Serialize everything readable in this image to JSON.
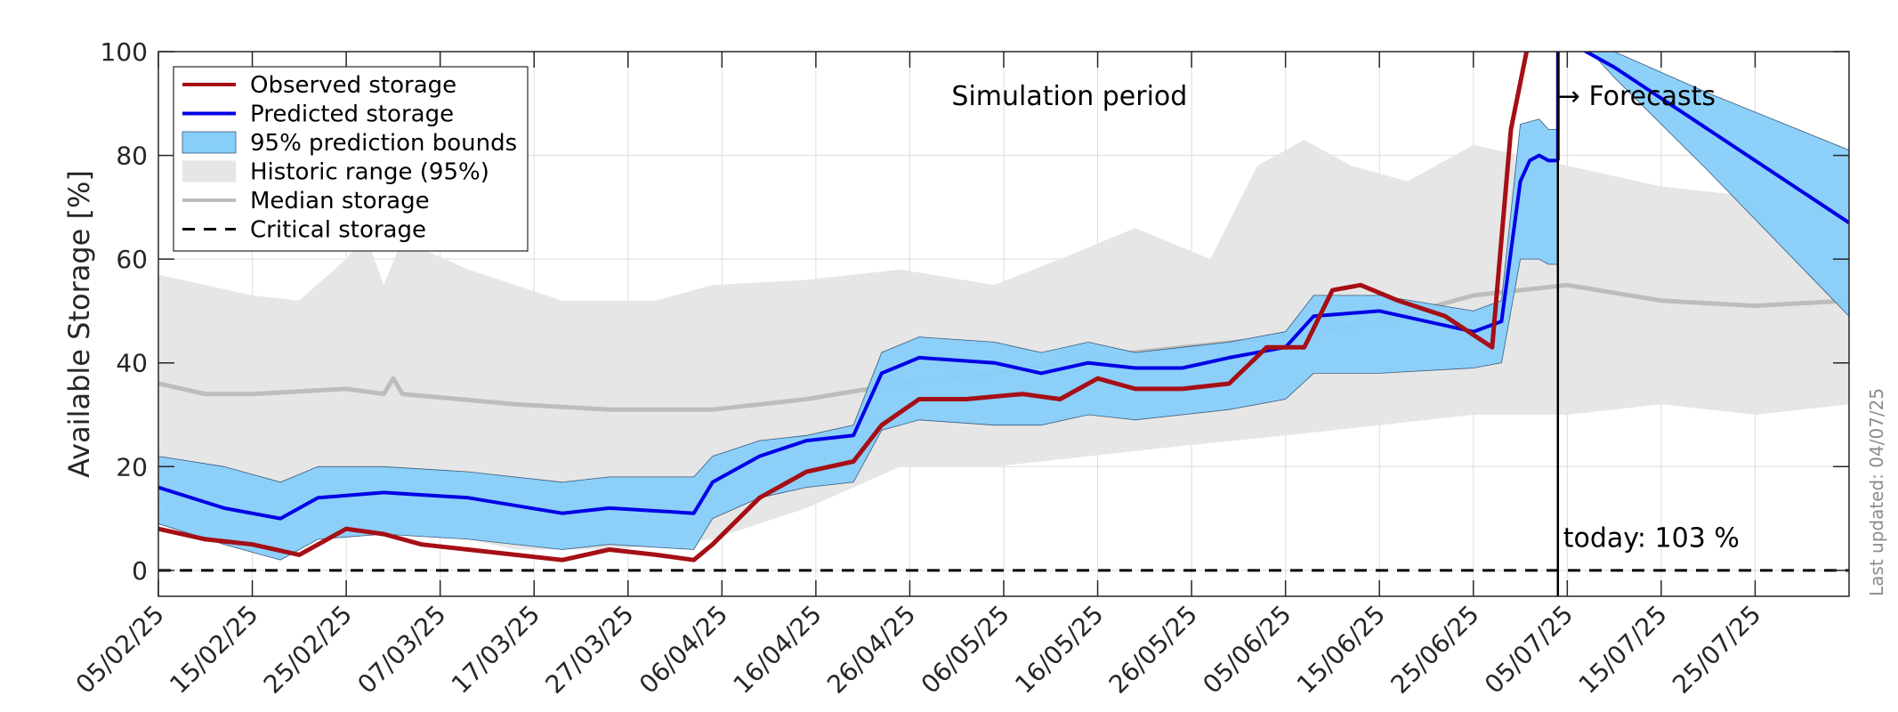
{
  "chart_data": {
    "type": "area",
    "ylabel": "Available Storage [%]",
    "ylim": [
      0,
      100
    ],
    "ylim_display": [
      -5,
      100
    ],
    "yticks": [
      0,
      20,
      40,
      60,
      80,
      100
    ],
    "x_start": "2025-02-05",
    "x_end": "2025-08-04",
    "xtick_labels": [
      "05/02/25",
      "15/02/25",
      "25/02/25",
      "07/03/25",
      "17/03/25",
      "27/03/25",
      "06/04/25",
      "16/04/25",
      "26/04/25",
      "06/05/25",
      "16/05/25",
      "26/05/25",
      "05/06/25",
      "15/06/25",
      "25/06/25",
      "05/07/25",
      "15/07/25",
      "25/07/25"
    ],
    "grid": true,
    "legend_position": "top-left",
    "legend": [
      {
        "label": "Observed storage",
        "style": "line",
        "color": "#a50f15"
      },
      {
        "label": "Predicted storage",
        "style": "line",
        "color": "#0000e6"
      },
      {
        "label": "95% prediction bounds",
        "style": "patch",
        "color": "#87cefa"
      },
      {
        "label": "Historic range (95%)",
        "style": "patch",
        "color": "#e6e6e6"
      },
      {
        "label": "Median storage",
        "style": "line",
        "color": "#bdbdbd"
      },
      {
        "label": "Critical storage",
        "style": "dashed",
        "color": "#000000"
      }
    ],
    "annotations": {
      "simulation_period": "Simulation period",
      "forecasts": "→ Forecasts",
      "today": "today: 103 %",
      "last_updated": "Last updated: 04/07/25"
    },
    "today_date": "2025-07-04",
    "critical_storage": 0,
    "colors": {
      "observed": "#a50f15",
      "predicted": "#0000e6",
      "bounds": "#87cefa",
      "historic": "#e6e6e6",
      "median": "#bdbdbd"
    },
    "series": {
      "historic_range": {
        "upper": [
          [
            "2025-02-05",
            57
          ],
          [
            "2025-02-10",
            55
          ],
          [
            "2025-02-15",
            53
          ],
          [
            "2025-02-20",
            52
          ],
          [
            "2025-02-25",
            60
          ],
          [
            "2025-02-27",
            65
          ],
          [
            "2025-03-01",
            55
          ],
          [
            "2025-03-03",
            64
          ],
          [
            "2025-03-05",
            62
          ],
          [
            "2025-03-10",
            58
          ],
          [
            "2025-03-20",
            52
          ],
          [
            "2025-03-30",
            52
          ],
          [
            "2025-04-05",
            55
          ],
          [
            "2025-04-15",
            56
          ],
          [
            "2025-04-25",
            58
          ],
          [
            "2025-05-05",
            55
          ],
          [
            "2025-05-12",
            60
          ],
          [
            "2025-05-20",
            66
          ],
          [
            "2025-05-28",
            60
          ],
          [
            "2025-06-02",
            78
          ],
          [
            "2025-06-07",
            83
          ],
          [
            "2025-06-12",
            78
          ],
          [
            "2025-06-18",
            75
          ],
          [
            "2025-06-25",
            82
          ],
          [
            "2025-07-05",
            78
          ],
          [
            "2025-07-15",
            74
          ],
          [
            "2025-07-25",
            72
          ],
          [
            "2025-08-04",
            72
          ]
        ],
        "lower": [
          [
            "2025-02-05",
            13
          ],
          [
            "2025-02-15",
            9
          ],
          [
            "2025-02-25",
            8
          ],
          [
            "2025-03-05",
            8
          ],
          [
            "2025-03-15",
            4
          ],
          [
            "2025-03-25",
            4
          ],
          [
            "2025-04-05",
            6
          ],
          [
            "2025-04-15",
            12
          ],
          [
            "2025-04-25",
            20
          ],
          [
            "2025-05-05",
            20
          ],
          [
            "2025-05-15",
            22
          ],
          [
            "2025-05-25",
            24
          ],
          [
            "2025-06-05",
            26
          ],
          [
            "2025-06-15",
            28
          ],
          [
            "2025-06-25",
            30
          ],
          [
            "2025-07-05",
            30
          ],
          [
            "2025-07-15",
            32
          ],
          [
            "2025-07-25",
            30
          ],
          [
            "2025-08-04",
            32
          ]
        ]
      },
      "median_storage": [
        [
          "2025-02-05",
          36
        ],
        [
          "2025-02-10",
          34
        ],
        [
          "2025-02-15",
          34
        ],
        [
          "2025-02-25",
          35
        ],
        [
          "2025-03-01",
          34
        ],
        [
          "2025-03-02",
          37
        ],
        [
          "2025-03-03",
          34
        ],
        [
          "2025-03-15",
          32
        ],
        [
          "2025-03-25",
          31
        ],
        [
          "2025-04-05",
          31
        ],
        [
          "2025-04-15",
          33
        ],
        [
          "2025-04-25",
          36
        ],
        [
          "2025-05-05",
          38
        ],
        [
          "2025-05-15",
          41
        ],
        [
          "2025-05-25",
          43
        ],
        [
          "2025-06-05",
          45
        ],
        [
          "2025-06-15",
          48
        ],
        [
          "2025-06-25",
          53
        ],
        [
          "2025-07-05",
          55
        ],
        [
          "2025-07-15",
          52
        ],
        [
          "2025-07-25",
          51
        ],
        [
          "2025-08-04",
          52
        ]
      ],
      "prediction_bounds_upper": [
        [
          "2025-02-05",
          22
        ],
        [
          "2025-02-12",
          20
        ],
        [
          "2025-02-18",
          17
        ],
        [
          "2025-02-22",
          20
        ],
        [
          "2025-03-01",
          20
        ],
        [
          "2025-03-10",
          19
        ],
        [
          "2025-03-20",
          17
        ],
        [
          "2025-03-25",
          18
        ],
        [
          "2025-04-03",
          18
        ],
        [
          "2025-04-05",
          22
        ],
        [
          "2025-04-10",
          25
        ],
        [
          "2025-04-15",
          26
        ],
        [
          "2025-04-20",
          28
        ],
        [
          "2025-04-23",
          42
        ],
        [
          "2025-04-27",
          45
        ],
        [
          "2025-05-05",
          44
        ],
        [
          "2025-05-10",
          42
        ],
        [
          "2025-05-15",
          44
        ],
        [
          "2025-05-20",
          42
        ],
        [
          "2025-05-25",
          43
        ],
        [
          "2025-05-30",
          44
        ],
        [
          "2025-06-05",
          46
        ],
        [
          "2025-06-08",
          53
        ],
        [
          "2025-06-15",
          53
        ],
        [
          "2025-06-25",
          50
        ],
        [
          "2025-06-28",
          52
        ],
        [
          "2025-06-30",
          86
        ],
        [
          "2025-07-02",
          87
        ],
        [
          "2025-07-03",
          85
        ],
        [
          "2025-07-04",
          85
        ]
      ],
      "prediction_bounds_lower": [
        [
          "2025-02-05",
          9
        ],
        [
          "2025-02-12",
          5
        ],
        [
          "2025-02-18",
          2
        ],
        [
          "2025-02-22",
          6
        ],
        [
          "2025-03-01",
          7
        ],
        [
          "2025-03-10",
          6
        ],
        [
          "2025-03-20",
          4
        ],
        [
          "2025-03-25",
          5
        ],
        [
          "2025-04-03",
          4
        ],
        [
          "2025-04-05",
          10
        ],
        [
          "2025-04-10",
          14
        ],
        [
          "2025-04-15",
          16
        ],
        [
          "2025-04-20",
          17
        ],
        [
          "2025-04-23",
          27
        ],
        [
          "2025-04-27",
          29
        ],
        [
          "2025-05-05",
          28
        ],
        [
          "2025-05-10",
          28
        ],
        [
          "2025-05-15",
          30
        ],
        [
          "2025-05-20",
          29
        ],
        [
          "2025-05-25",
          30
        ],
        [
          "2025-05-30",
          31
        ],
        [
          "2025-06-05",
          33
        ],
        [
          "2025-06-08",
          38
        ],
        [
          "2025-06-15",
          38
        ],
        [
          "2025-06-25",
          39
        ],
        [
          "2025-06-28",
          40
        ],
        [
          "2025-06-30",
          60
        ],
        [
          "2025-07-02",
          60
        ],
        [
          "2025-07-03",
          59
        ],
        [
          "2025-07-04",
          59
        ]
      ],
      "predicted_storage": [
        [
          "2025-02-05",
          16
        ],
        [
          "2025-02-12",
          12
        ],
        [
          "2025-02-18",
          10
        ],
        [
          "2025-02-22",
          14
        ],
        [
          "2025-03-01",
          15
        ],
        [
          "2025-03-10",
          14
        ],
        [
          "2025-03-20",
          11
        ],
        [
          "2025-03-25",
          12
        ],
        [
          "2025-04-03",
          11
        ],
        [
          "2025-04-05",
          17
        ],
        [
          "2025-04-10",
          22
        ],
        [
          "2025-04-15",
          25
        ],
        [
          "2025-04-20",
          26
        ],
        [
          "2025-04-23",
          38
        ],
        [
          "2025-04-27",
          41
        ],
        [
          "2025-05-05",
          40
        ],
        [
          "2025-05-10",
          38
        ],
        [
          "2025-05-15",
          40
        ],
        [
          "2025-05-20",
          39
        ],
        [
          "2025-05-25",
          39
        ],
        [
          "2025-05-30",
          41
        ],
        [
          "2025-06-05",
          43
        ],
        [
          "2025-06-08",
          49
        ],
        [
          "2025-06-15",
          50
        ],
        [
          "2025-06-25",
          46
        ],
        [
          "2025-06-28",
          48
        ],
        [
          "2025-06-30",
          75
        ],
        [
          "2025-07-01",
          79
        ],
        [
          "2025-07-02",
          80
        ],
        [
          "2025-07-03",
          79
        ],
        [
          "2025-07-04",
          79
        ]
      ],
      "observed_storage": [
        [
          "2025-02-05",
          8
        ],
        [
          "2025-02-10",
          6
        ],
        [
          "2025-02-15",
          5
        ],
        [
          "2025-02-20",
          3
        ],
        [
          "2025-02-25",
          8
        ],
        [
          "2025-03-01",
          7
        ],
        [
          "2025-03-05",
          5
        ],
        [
          "2025-03-10",
          4
        ],
        [
          "2025-03-15",
          3
        ],
        [
          "2025-03-20",
          2
        ],
        [
          "2025-03-25",
          4
        ],
        [
          "2025-03-30",
          3
        ],
        [
          "2025-04-03",
          2
        ],
        [
          "2025-04-05",
          5
        ],
        [
          "2025-04-10",
          14
        ],
        [
          "2025-04-15",
          19
        ],
        [
          "2025-04-20",
          21
        ],
        [
          "2025-04-23",
          28
        ],
        [
          "2025-04-27",
          33
        ],
        [
          "2025-05-02",
          33
        ],
        [
          "2025-05-08",
          34
        ],
        [
          "2025-05-12",
          33
        ],
        [
          "2025-05-16",
          37
        ],
        [
          "2025-05-20",
          35
        ],
        [
          "2025-05-25",
          35
        ],
        [
          "2025-05-30",
          36
        ],
        [
          "2025-06-03",
          43
        ],
        [
          "2025-06-07",
          43
        ],
        [
          "2025-06-10",
          54
        ],
        [
          "2025-06-13",
          55
        ],
        [
          "2025-06-17",
          52
        ],
        [
          "2025-06-22",
          49
        ],
        [
          "2025-06-27",
          43
        ],
        [
          "2025-06-29",
          85
        ],
        [
          "2025-07-01",
          103
        ]
      ],
      "forecast_bounds_upper": [
        [
          "2025-07-06",
          103
        ],
        [
          "2025-07-10",
          100
        ],
        [
          "2025-07-20",
          92
        ],
        [
          "2025-08-04",
          81
        ]
      ],
      "forecast_bounds_lower": [
        [
          "2025-07-06",
          103
        ],
        [
          "2025-07-10",
          95
        ],
        [
          "2025-07-20",
          77
        ],
        [
          "2025-08-04",
          49
        ]
      ],
      "forecast_predicted": [
        [
          "2025-07-04",
          79
        ],
        [
          "2025-07-04",
          103
        ],
        [
          "2025-07-10",
          97
        ],
        [
          "2025-07-20",
          85
        ],
        [
          "2025-08-04",
          67
        ]
      ]
    }
  }
}
